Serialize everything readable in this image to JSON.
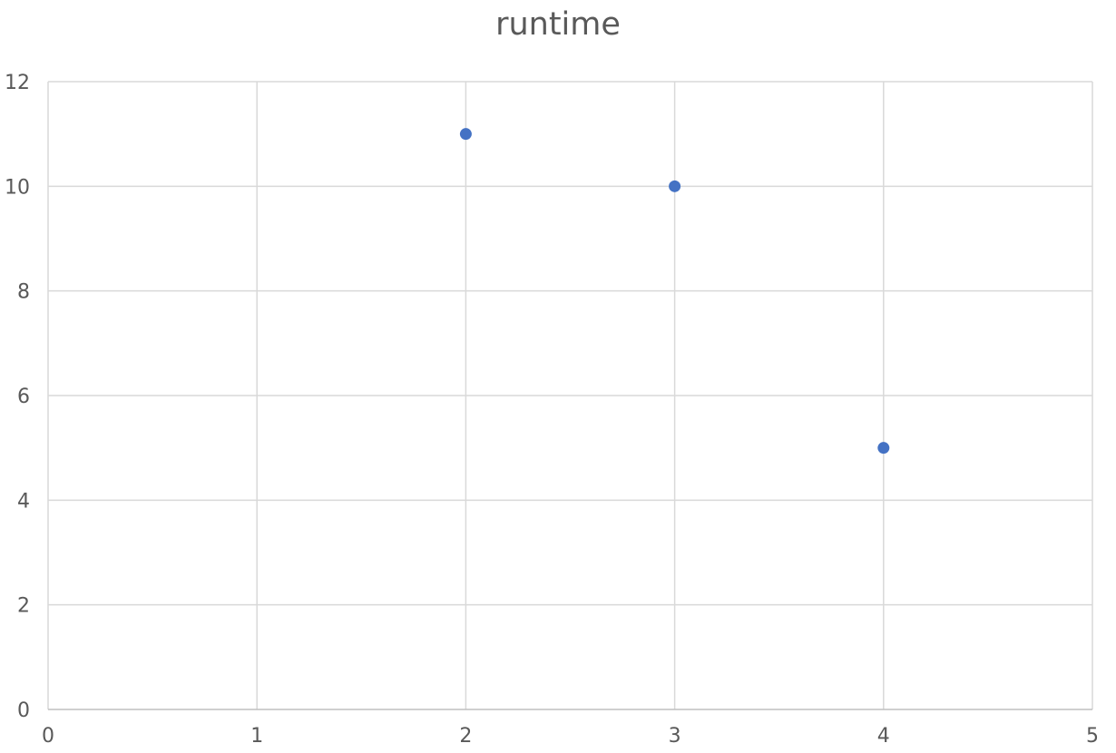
{
  "chart_data": {
    "type": "scatter",
    "title": "runtime",
    "xlabel": "",
    "ylabel": "",
    "xlim": [
      0,
      5
    ],
    "ylim": [
      0,
      12
    ],
    "x_ticks": [
      0,
      1,
      2,
      3,
      4,
      5
    ],
    "y_ticks": [
      0,
      2,
      4,
      6,
      8,
      10,
      12
    ],
    "grid": true,
    "legend": "none",
    "series": [
      {
        "color": "#4472c4",
        "points": [
          {
            "x": 2,
            "y": 11
          },
          {
            "x": 3,
            "y": 10
          },
          {
            "x": 4,
            "y": 5
          }
        ]
      }
    ]
  }
}
